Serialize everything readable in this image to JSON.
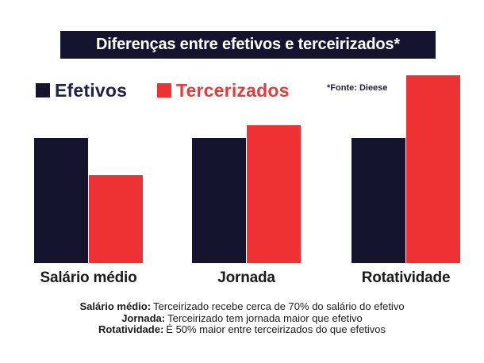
{
  "colors": {
    "background": "#ffffff",
    "navy": "#14142e",
    "red": "#ee3233",
    "navy_text": "#1f2145",
    "red_text": "#e23c3e",
    "title_text": "#ffffff",
    "text_dark": "#1b1b1b",
    "source_text": "#202038"
  },
  "header": {
    "title": "Diferenças entre efetivos e terceirizados*"
  },
  "legend": {
    "efetivos_label": "Efetivos",
    "tercerizados_label": "Tercerizados",
    "source_note": "*Fonte: Dieese"
  },
  "chart_data": {
    "type": "bar",
    "title": "Diferenças entre efetivos e terceirizados*",
    "categories": [
      "Salário médio",
      "Jornada",
      "Rotatividade"
    ],
    "series": [
      {
        "name": "Efetivos",
        "color": "#14142e",
        "values": [
          100,
          100,
          100
        ]
      },
      {
        "name": "Tercerizados",
        "color": "#ee3233",
        "values": [
          70,
          110,
          150
        ]
      }
    ],
    "ylim": [
      0,
      150
    ],
    "grid": false,
    "axes_visible": false,
    "legend_position": "top-left"
  },
  "footer": {
    "lines": [
      {
        "label": "Salário médio:",
        "text": "Terceirizado recebe cerca de 70% do salário do efetivo"
      },
      {
        "label": "Jornada:",
        "text": "Terceirizado tem jornada maior que efetivo"
      },
      {
        "label": "Rotatividade:",
        "text": "É 50% maior entre terceirizados do que efetivos"
      }
    ]
  }
}
